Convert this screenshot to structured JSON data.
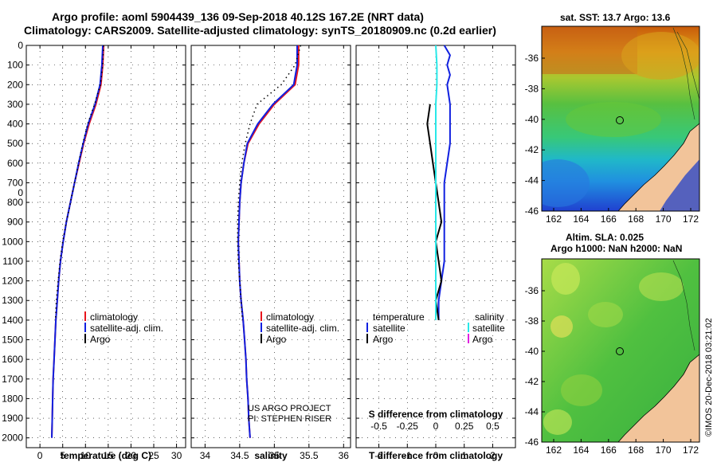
{
  "header": {
    "line1": "Argo profile: aoml 5904439_136 09-Sep-2018 40.12S 167.2E (NRT data)",
    "line2": "Climatology: CARS2009. Satellite-adjusted climatology: synTS_20180909.nc (0.2d earlier)"
  },
  "colors": {
    "climatology": "#e8141c",
    "satellite": "#1020e0",
    "argo": "#000000",
    "sat_salinity": "#28e8e8",
    "argo_salinity": "#e020e0",
    "land": "#f2c49a"
  },
  "depth_ticks": [
    "0",
    "100",
    "200",
    "300",
    "400",
    "500",
    "600",
    "700",
    "0",
    "800",
    "900",
    "1000",
    "1100",
    "1200",
    "1300",
    "1400",
    "1500",
    "1600",
    "1700",
    "1800",
    "1900",
    "2000"
  ],
  "legend_main": {
    "climatology": "climatology",
    "satellite": "satellite-adj. clim.",
    "argo": "Argo"
  },
  "legend_diff": {
    "temperature": "temperature",
    "salinity": "salinity",
    "satellite": "satellite",
    "argo": "Argo"
  },
  "credit": {
    "line1": "US ARGO PROJECT",
    "line2": "PI: STEPHEN RISER"
  },
  "watermark": "©IMOS 20-Dec-2018 03:21:02",
  "chart_data": [
    {
      "type": "line",
      "title": "",
      "xlabel": "temperature (deg C)",
      "ylabel": "depth",
      "xlim": [
        -3,
        32
      ],
      "ylim": [
        2050,
        0
      ],
      "xticks": [
        "0",
        "5",
        "10",
        "15",
        "20",
        "25",
        "30"
      ],
      "series": [
        {
          "name": "climatology",
          "depth": [
            0,
            100,
            200,
            300,
            400,
            500,
            600,
            700,
            800,
            900,
            1000,
            1100,
            1200,
            1300,
            1400,
            1500,
            1600,
            1700,
            1800,
            1900,
            2000
          ],
          "values": [
            14.0,
            13.8,
            13.4,
            12.3,
            10.8,
            9.6,
            8.6,
            7.6,
            6.7,
            5.8,
            5.1,
            4.5,
            4.1,
            3.8,
            3.5,
            3.3,
            3.1,
            2.9,
            2.8,
            2.7,
            2.6
          ]
        },
        {
          "name": "satellite-adj. clim.",
          "depth": [
            0,
            100,
            200,
            300,
            400,
            500,
            600,
            700,
            800,
            900,
            1000,
            1100,
            1200,
            1300,
            1400,
            1500,
            1600,
            1700,
            1800,
            1900,
            2000
          ],
          "values": [
            13.8,
            13.6,
            13.2,
            12.1,
            10.6,
            9.5,
            8.5,
            7.6,
            6.7,
            5.8,
            5.1,
            4.5,
            4.1,
            3.8,
            3.5,
            3.3,
            3.1,
            2.9,
            2.8,
            2.7,
            2.6
          ]
        },
        {
          "name": "Argo",
          "depth": [
            0,
            100,
            200,
            300,
            400,
            500,
            600,
            700,
            800,
            900,
            1000,
            1100,
            1200,
            1300,
            1400
          ],
          "values": [
            14.0,
            13.8,
            13.3,
            12.0,
            10.5,
            9.4,
            8.5,
            7.6,
            6.7,
            5.8,
            5.0,
            4.4,
            4.0,
            3.6,
            3.4
          ]
        }
      ]
    },
    {
      "type": "line",
      "title": "",
      "xlabel": "salinity",
      "ylabel": "depth",
      "xlim": [
        33.8,
        36.1
      ],
      "ylim": [
        2050,
        0
      ],
      "xticks": [
        "34",
        "34.5",
        "35",
        "35.5",
        "36"
      ],
      "series": [
        {
          "name": "climatology",
          "depth": [
            0,
            100,
            200,
            300,
            400,
            500,
            600,
            700,
            800,
            900,
            1000,
            1100,
            1200,
            1300,
            1400,
            1500,
            1600,
            1700,
            1800,
            1900,
            2000
          ],
          "values": [
            35.35,
            35.35,
            35.3,
            35.0,
            34.78,
            34.62,
            34.56,
            34.52,
            34.5,
            34.49,
            34.48,
            34.49,
            34.5,
            34.52,
            34.55,
            34.57,
            34.59,
            34.6,
            34.62,
            34.63,
            34.65
          ]
        },
        {
          "name": "satellite-adj. clim.",
          "depth": [
            0,
            100,
            200,
            300,
            400,
            500,
            600,
            700,
            800,
            900,
            1000,
            1100,
            1200,
            1300,
            1400,
            1500,
            1600,
            1700,
            1800,
            1900,
            2000
          ],
          "values": [
            35.33,
            35.33,
            35.28,
            34.98,
            34.76,
            34.61,
            34.56,
            34.52,
            34.5,
            34.49,
            34.48,
            34.49,
            34.5,
            34.52,
            34.55,
            34.57,
            34.59,
            34.6,
            34.62,
            34.63,
            34.65
          ]
        },
        {
          "name": "Argo",
          "depth": [
            0,
            100,
            200,
            300,
            400,
            500,
            600,
            700,
            800,
            900,
            1000,
            1100,
            1200,
            1300,
            1400
          ],
          "values": [
            35.38,
            35.3,
            35.1,
            34.75,
            34.65,
            34.58,
            34.53,
            34.5,
            34.48,
            34.47,
            34.47,
            34.48,
            34.5,
            34.52,
            34.54
          ]
        }
      ]
    },
    {
      "type": "line",
      "title": "",
      "xlabel": "T difference from climatology",
      "ylabel": "depth",
      "xlim": [
        -2.8,
        2.8
      ],
      "ylim": [
        2050,
        0
      ],
      "xticks": [
        "-2",
        "-1",
        "0",
        "1",
        "2"
      ],
      "secondary_axis": {
        "label": "S difference from climatology",
        "xlim": [
          -0.7,
          0.7
        ],
        "ticks": [
          "-0.5",
          "-0.25",
          "0",
          "0.25",
          "0.5"
        ]
      },
      "series": [
        {
          "name": "temperature satellite",
          "depth": [
            0,
            50,
            100,
            150,
            200,
            300,
            400,
            500,
            600,
            700,
            800,
            900,
            1000,
            1100,
            1200,
            1300,
            1400
          ],
          "values": [
            0.3,
            0.5,
            0.4,
            0.5,
            0.4,
            0.5,
            0.5,
            0.5,
            0.4,
            0.3,
            0.3,
            0.3,
            0.3,
            0.3,
            0.2,
            0.1,
            0.1
          ]
        },
        {
          "name": "temperature Argo",
          "depth": [
            300,
            400,
            500,
            600,
            700,
            800,
            900,
            1000,
            1100,
            1200,
            1300,
            1400
          ],
          "values": [
            -0.2,
            -0.3,
            -0.2,
            -0.1,
            0.0,
            0.1,
            0.2,
            0.0,
            0.1,
            0.2,
            0.0,
            0.1
          ]
        },
        {
          "name": "salinity satellite",
          "depth": [
            0,
            100,
            200,
            300,
            400,
            500,
            600,
            700,
            800,
            900,
            1000,
            1100,
            1200,
            1300,
            1400
          ],
          "values": [
            0.0,
            0.01,
            0.01,
            0.0,
            0.0,
            0.0,
            0.0,
            0.0,
            0.0,
            0.0,
            0.0,
            0.0,
            0.0,
            0.0,
            0.0
          ]
        }
      ]
    }
  ],
  "maps": {
    "sst": {
      "title": "sat. SST: 13.7 Argo: 13.6",
      "xticks": [
        "162",
        "164",
        "166",
        "168",
        "170",
        "172"
      ],
      "yticks": [
        "-36",
        "-38",
        "-40",
        "-42",
        "-44",
        "-46"
      ]
    },
    "sla": {
      "title1": "Altim. SLA: 0.025",
      "title2": "Argo h1000: NaN h2000: NaN",
      "xticks": [
        "162",
        "164",
        "166",
        "168",
        "170",
        "172"
      ],
      "yticks": [
        "-36",
        "-38",
        "-40",
        "-42",
        "-44",
        "-46"
      ]
    }
  }
}
